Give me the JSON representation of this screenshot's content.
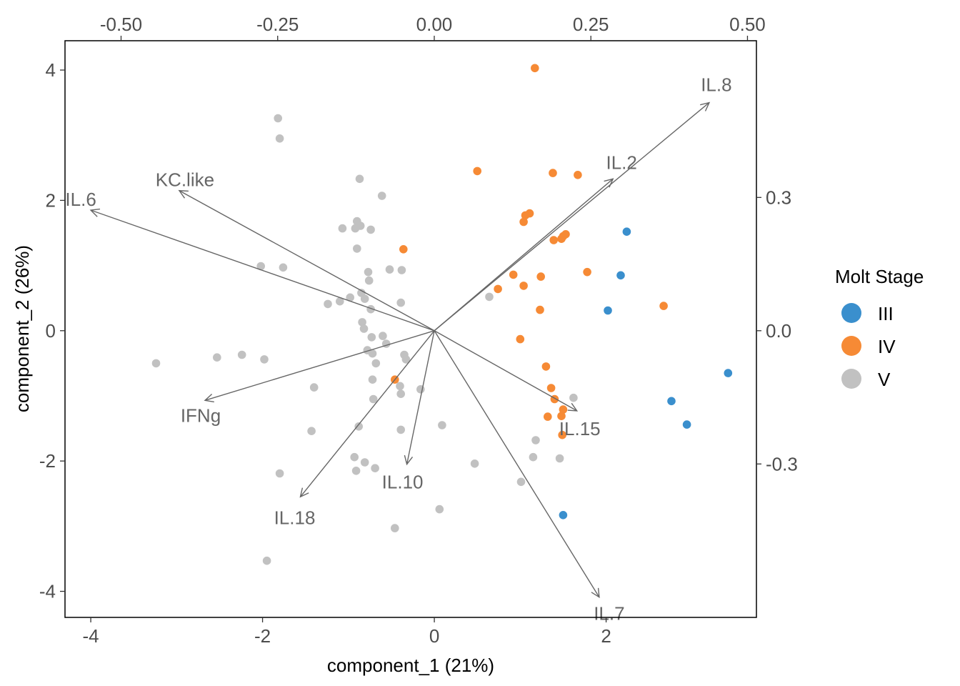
{
  "chart_data": {
    "type": "scatter",
    "subtype": "pca-biplot",
    "xlabel": "component_1   (21%)",
    "ylabel": "component_2   (26%)",
    "xlim": [
      -4.3,
      3.75
    ],
    "ylim": [
      -4.4,
      4.45
    ],
    "x_ticks": [
      -4,
      -2,
      0,
      2
    ],
    "x_tick_labels": [
      "-4",
      "-2",
      "0",
      "2"
    ],
    "y_ticks": [
      -4,
      -2,
      0,
      2,
      4
    ],
    "y_tick_labels": [
      "-4",
      "-2",
      "0",
      "2",
      "4"
    ],
    "top_axis": {
      "lim": [
        -0.5895,
        0.5143
      ],
      "ticks": [
        -0.5,
        -0.25,
        0.0,
        0.25,
        0.5
      ],
      "tick_labels": [
        "-0.50",
        "-0.25",
        "0.00",
        "0.25",
        "0.50"
      ]
    },
    "right_axis": {
      "lim": [
        -0.6454,
        0.6528
      ],
      "ticks": [
        -0.3,
        0.0,
        0.3
      ],
      "tick_labels": [
        "-0.3",
        "0.0",
        "0.3"
      ]
    },
    "grid": false,
    "legend": {
      "title": "Molt Stage",
      "position": "right"
    },
    "colors": {
      "III": "#3a8fcd",
      "IV": "#f68a35",
      "V": "#c1c1c1",
      "arrow": "#666666"
    },
    "series": [
      {
        "name": "III",
        "points": [
          [
            2.24,
            1.52
          ],
          [
            2.17,
            0.85
          ],
          [
            2.02,
            0.31
          ],
          [
            3.42,
            -0.65
          ],
          [
            2.76,
            -1.08
          ],
          [
            2.94,
            -1.44
          ],
          [
            1.5,
            -2.83
          ]
        ]
      },
      {
        "name": "IV",
        "points": [
          [
            1.17,
            4.03
          ],
          [
            0.5,
            2.45
          ],
          [
            1.38,
            2.42
          ],
          [
            1.67,
            2.39
          ],
          [
            1.11,
            1.8
          ],
          [
            1.06,
            1.77
          ],
          [
            1.04,
            1.67
          ],
          [
            1.5,
            1.45
          ],
          [
            1.53,
            1.48
          ],
          [
            1.39,
            1.39
          ],
          [
            1.48,
            1.41
          ],
          [
            -0.36,
            1.25
          ],
          [
            1.78,
            0.9
          ],
          [
            0.92,
            0.86
          ],
          [
            1.24,
            0.83
          ],
          [
            1.04,
            0.69
          ],
          [
            0.74,
            0.64
          ],
          [
            2.67,
            0.38
          ],
          [
            1.23,
            0.32
          ],
          [
            1.0,
            -0.13
          ],
          [
            1.3,
            -0.55
          ],
          [
            -0.46,
            -0.75
          ],
          [
            1.36,
            -0.88
          ],
          [
            1.4,
            -1.05
          ],
          [
            1.5,
            -1.21
          ],
          [
            1.48,
            -1.31
          ],
          [
            1.32,
            -1.32
          ],
          [
            1.49,
            -1.6
          ]
        ]
      },
      {
        "name": "V",
        "points": [
          [
            -1.82,
            3.26
          ],
          [
            -1.8,
            2.95
          ],
          [
            -0.87,
            2.33
          ],
          [
            -0.61,
            2.07
          ],
          [
            -1.07,
            1.57
          ],
          [
            -0.9,
            1.68
          ],
          [
            -0.86,
            1.61
          ],
          [
            -0.74,
            1.55
          ],
          [
            -0.92,
            1.57
          ],
          [
            -0.9,
            1.26
          ],
          [
            -2.02,
            0.99
          ],
          [
            -1.76,
            0.97
          ],
          [
            -0.52,
            0.94
          ],
          [
            -0.38,
            0.93
          ],
          [
            -0.77,
            0.9
          ],
          [
            -0.76,
            0.77
          ],
          [
            -0.85,
            0.58
          ],
          [
            -0.98,
            0.51
          ],
          [
            -0.81,
            0.49
          ],
          [
            -1.1,
            0.45
          ],
          [
            -0.39,
            0.43
          ],
          [
            -1.24,
            0.41
          ],
          [
            -0.74,
            0.33
          ],
          [
            -0.84,
            0.13
          ],
          [
            0.64,
            0.52
          ],
          [
            -0.82,
            0.03
          ],
          [
            -0.6,
            -0.08
          ],
          [
            -0.73,
            -0.1
          ],
          [
            -0.56,
            -0.2
          ],
          [
            -0.78,
            -0.3
          ],
          [
            -0.35,
            -0.37
          ],
          [
            -0.33,
            -0.44
          ],
          [
            -0.72,
            -0.35
          ],
          [
            -0.68,
            -0.5
          ],
          [
            -3.24,
            -0.5
          ],
          [
            -2.53,
            -0.41
          ],
          [
            -2.24,
            -0.37
          ],
          [
            -1.98,
            -0.44
          ],
          [
            -0.72,
            -0.75
          ],
          [
            -0.4,
            -0.85
          ],
          [
            -0.16,
            -0.9
          ],
          [
            -0.39,
            -0.97
          ],
          [
            -1.4,
            -0.87
          ],
          [
            -0.71,
            -1.05
          ],
          [
            0.09,
            -1.45
          ],
          [
            -0.88,
            -1.47
          ],
          [
            -1.43,
            -1.54
          ],
          [
            -0.39,
            -1.52
          ],
          [
            -0.93,
            -1.94
          ],
          [
            -0.81,
            -2.02
          ],
          [
            -0.69,
            -2.11
          ],
          [
            -0.91,
            -2.15
          ],
          [
            0.47,
            -2.04
          ],
          [
            1.15,
            -1.94
          ],
          [
            1.18,
            -1.68
          ],
          [
            1.46,
            -1.96
          ],
          [
            1.62,
            -1.03
          ],
          [
            -1.8,
            -2.19
          ],
          [
            1.01,
            -2.32
          ],
          [
            0.06,
            -2.74
          ],
          [
            -0.46,
            -3.03
          ],
          [
            -1.95,
            -3.53
          ]
        ]
      }
    ],
    "loadings": [
      {
        "name": "IL.8",
        "x": 3.2,
        "y": 3.5
      },
      {
        "name": "IL.2",
        "x": 2.08,
        "y": 2.33
      },
      {
        "name": "KC.like",
        "x": -2.97,
        "y": 2.15
      },
      {
        "name": "IL.6",
        "x": -4.0,
        "y": 1.85
      },
      {
        "name": "IFNg",
        "x": -2.67,
        "y": -1.07
      },
      {
        "name": "IL.15",
        "x": 1.66,
        "y": -1.23
      },
      {
        "name": "IL.10",
        "x": -0.32,
        "y": -2.05
      },
      {
        "name": "IL.18",
        "x": -1.56,
        "y": -2.55
      },
      {
        "name": "IL.7",
        "x": 1.92,
        "y": -4.09
      }
    ]
  }
}
